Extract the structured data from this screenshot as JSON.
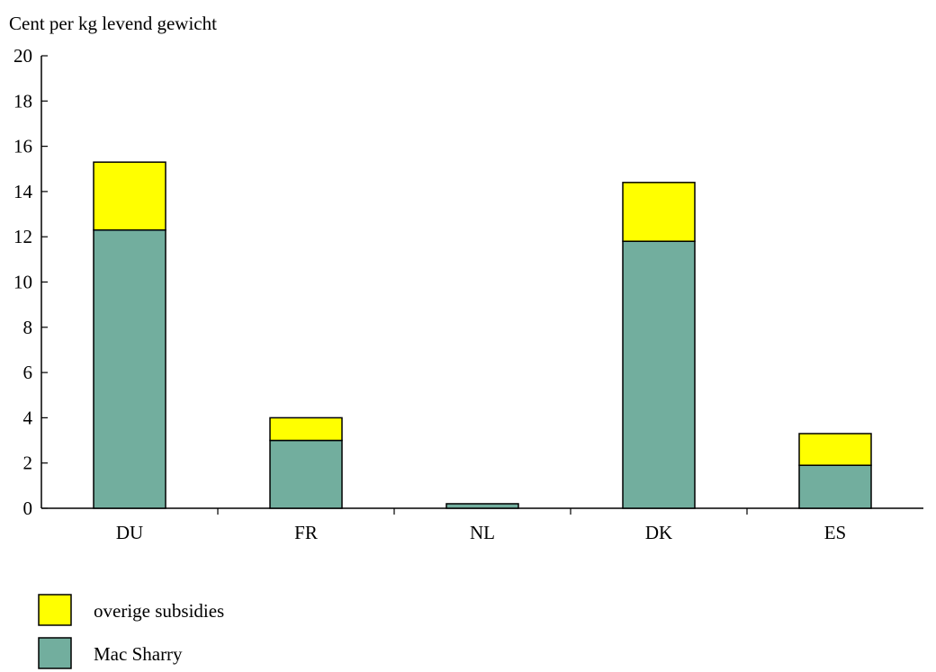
{
  "chart_data": {
    "type": "bar",
    "stacked": true,
    "ylabel": "Cent per kg levend gewicht",
    "ylim": [
      0,
      20
    ],
    "yticks": [
      0,
      2,
      4,
      6,
      8,
      10,
      12,
      14,
      16,
      18,
      20
    ],
    "categories": [
      "DU",
      "FR",
      "NL",
      "DK",
      "ES"
    ],
    "series": [
      {
        "name": "Mac Sharry",
        "color": "#72ae9e",
        "values": [
          12.3,
          3.0,
          0.2,
          11.8,
          1.9
        ]
      },
      {
        "name": "overige subsidies",
        "color": "#ffff00",
        "values": [
          3.0,
          1.0,
          0.0,
          2.6,
          1.4
        ]
      }
    ],
    "legend": [
      {
        "label": "overige subsidies",
        "color": "#ffff00"
      },
      {
        "label": "Mac Sharry",
        "color": "#72ae9e"
      }
    ],
    "legend_position": "bottom-left",
    "grid": false
  }
}
